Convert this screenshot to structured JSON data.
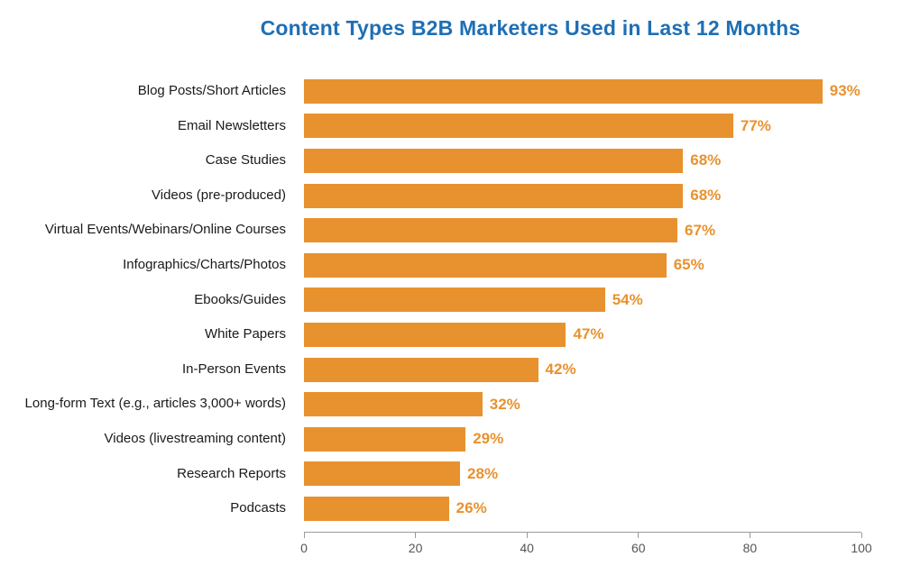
{
  "chart_data": {
    "type": "bar",
    "orientation": "horizontal",
    "title": "Content Types B2B Marketers Used in Last 12 Months",
    "categories": [
      "Blog Posts/Short Articles",
      "Email Newsletters",
      "Case Studies",
      "Videos (pre-produced)",
      "Virtual Events/Webinars/Online Courses",
      "Infographics/Charts/Photos",
      "Ebooks/Guides",
      "White Papers",
      "In-Person Events",
      "Long-form Text (e.g., articles 3,000+ words)",
      "Videos (livestreaming content)",
      "Research Reports",
      "Podcasts"
    ],
    "values": [
      93,
      77,
      68,
      68,
      67,
      65,
      54,
      47,
      42,
      32,
      29,
      28,
      26
    ],
    "value_suffix": "%",
    "xlabel": "",
    "ylabel": "",
    "xlim": [
      0,
      100
    ],
    "x_ticks": [
      0,
      20,
      40,
      60,
      80,
      100
    ],
    "grid": false,
    "legend": "none",
    "colors": {
      "bar": "#E8922F",
      "value_label": "#E8922F",
      "title": "#1E6FB5",
      "category_label": "#1A1A1A",
      "axis": "#9A9A9A",
      "tick_label": "#555555",
      "background": "#FFFFFF"
    }
  }
}
